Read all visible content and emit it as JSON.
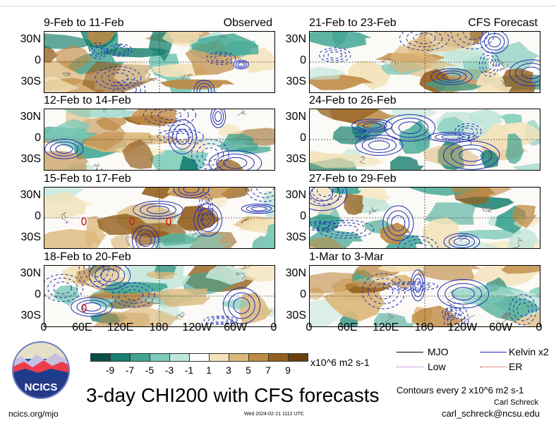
{
  "panels": [
    {
      "col": 0,
      "row": 0,
      "title": "9-Feb to 11-Feb",
      "tag": "Observed"
    },
    {
      "col": 1,
      "row": 0,
      "title": "21-Feb to 23-Feb",
      "tag": "CFS Forecast"
    },
    {
      "col": 0,
      "row": 1,
      "title": "12-Feb to 14-Feb",
      "tag": ""
    },
    {
      "col": 1,
      "row": 1,
      "title": "24-Feb to 26-Feb",
      "tag": ""
    },
    {
      "col": 0,
      "row": 2,
      "title": "15-Feb to 17-Feb",
      "tag": ""
    },
    {
      "col": 1,
      "row": 2,
      "title": "27-Feb to 29-Feb",
      "tag": ""
    },
    {
      "col": 0,
      "row": 3,
      "title": "18-Feb to 20-Feb",
      "tag": ""
    },
    {
      "col": 1,
      "row": 3,
      "title": "1-Mar to 3-Mar",
      "tag": ""
    }
  ],
  "lat_labels": [
    "30N",
    "0",
    "30S"
  ],
  "lon_labels": [
    "0",
    "60E",
    "120E",
    "180",
    "120W",
    "60W",
    "0"
  ],
  "colorbar": {
    "labels": [
      "-9",
      "-7",
      "-5",
      "-3",
      "-1",
      "1",
      "3",
      "5",
      "7",
      "9"
    ],
    "colors": [
      "#0a4f45",
      "#17806f",
      "#3fa592",
      "#7ccab8",
      "#c1e6da",
      "#ffffff",
      "#f3e2b9",
      "#ddb77a",
      "#bf8a44",
      "#95601f",
      "#6b3f0d"
    ],
    "unit": "x10^6 m2 s-1"
  },
  "legend": [
    {
      "label": "MJO",
      "color": "#000000",
      "style": "solid"
    },
    {
      "label": "Kelvin x2",
      "color": "#1f2fb8",
      "style": "solid"
    },
    {
      "label": "Low",
      "color": "#b04ad1",
      "style": "dotted"
    },
    {
      "label": "ER",
      "color": "#c81e1e",
      "style": "dotted"
    }
  ],
  "title": "3-day CHI200 with CFS forecasts",
  "contours_note": "Contours every 2 x10^6 m2 s-1",
  "author": "Carl Schreck",
  "email": "carl_schreck@ncsu.edu",
  "website": "ncics.org/mjo",
  "timestamp": "Wed 2024-02-21 1112 UTC",
  "logo_text": "NCICS",
  "chart_data": {
    "type": "heatmap",
    "title": "3-day CHI200 with CFS forecasts",
    "variable": "CHI200 anomaly",
    "units": "x10^6 m2 s-1",
    "colorbar_levels": [
      -9,
      -7,
      -5,
      -3,
      -1,
      1,
      3,
      5,
      7,
      9
    ],
    "x_ticks": [
      "0",
      "60E",
      "120E",
      "180",
      "120W",
      "60W",
      "0"
    ],
    "y_ticks": [
      "30N",
      "0",
      "30S"
    ],
    "panels": [
      "9-Feb to 11-Feb",
      "12-Feb to 14-Feb",
      "15-Feb to 17-Feb",
      "18-Feb to 20-Feb",
      "21-Feb to 23-Feb",
      "24-Feb to 26-Feb",
      "27-Feb to 29-Feb",
      "1-Mar to 3-Mar"
    ],
    "observed_panels": 4,
    "forecast_panels": 4,
    "contour_interval": 2,
    "overlays": [
      "MJO",
      "Kelvin x2",
      "Low",
      "ER"
    ]
  }
}
